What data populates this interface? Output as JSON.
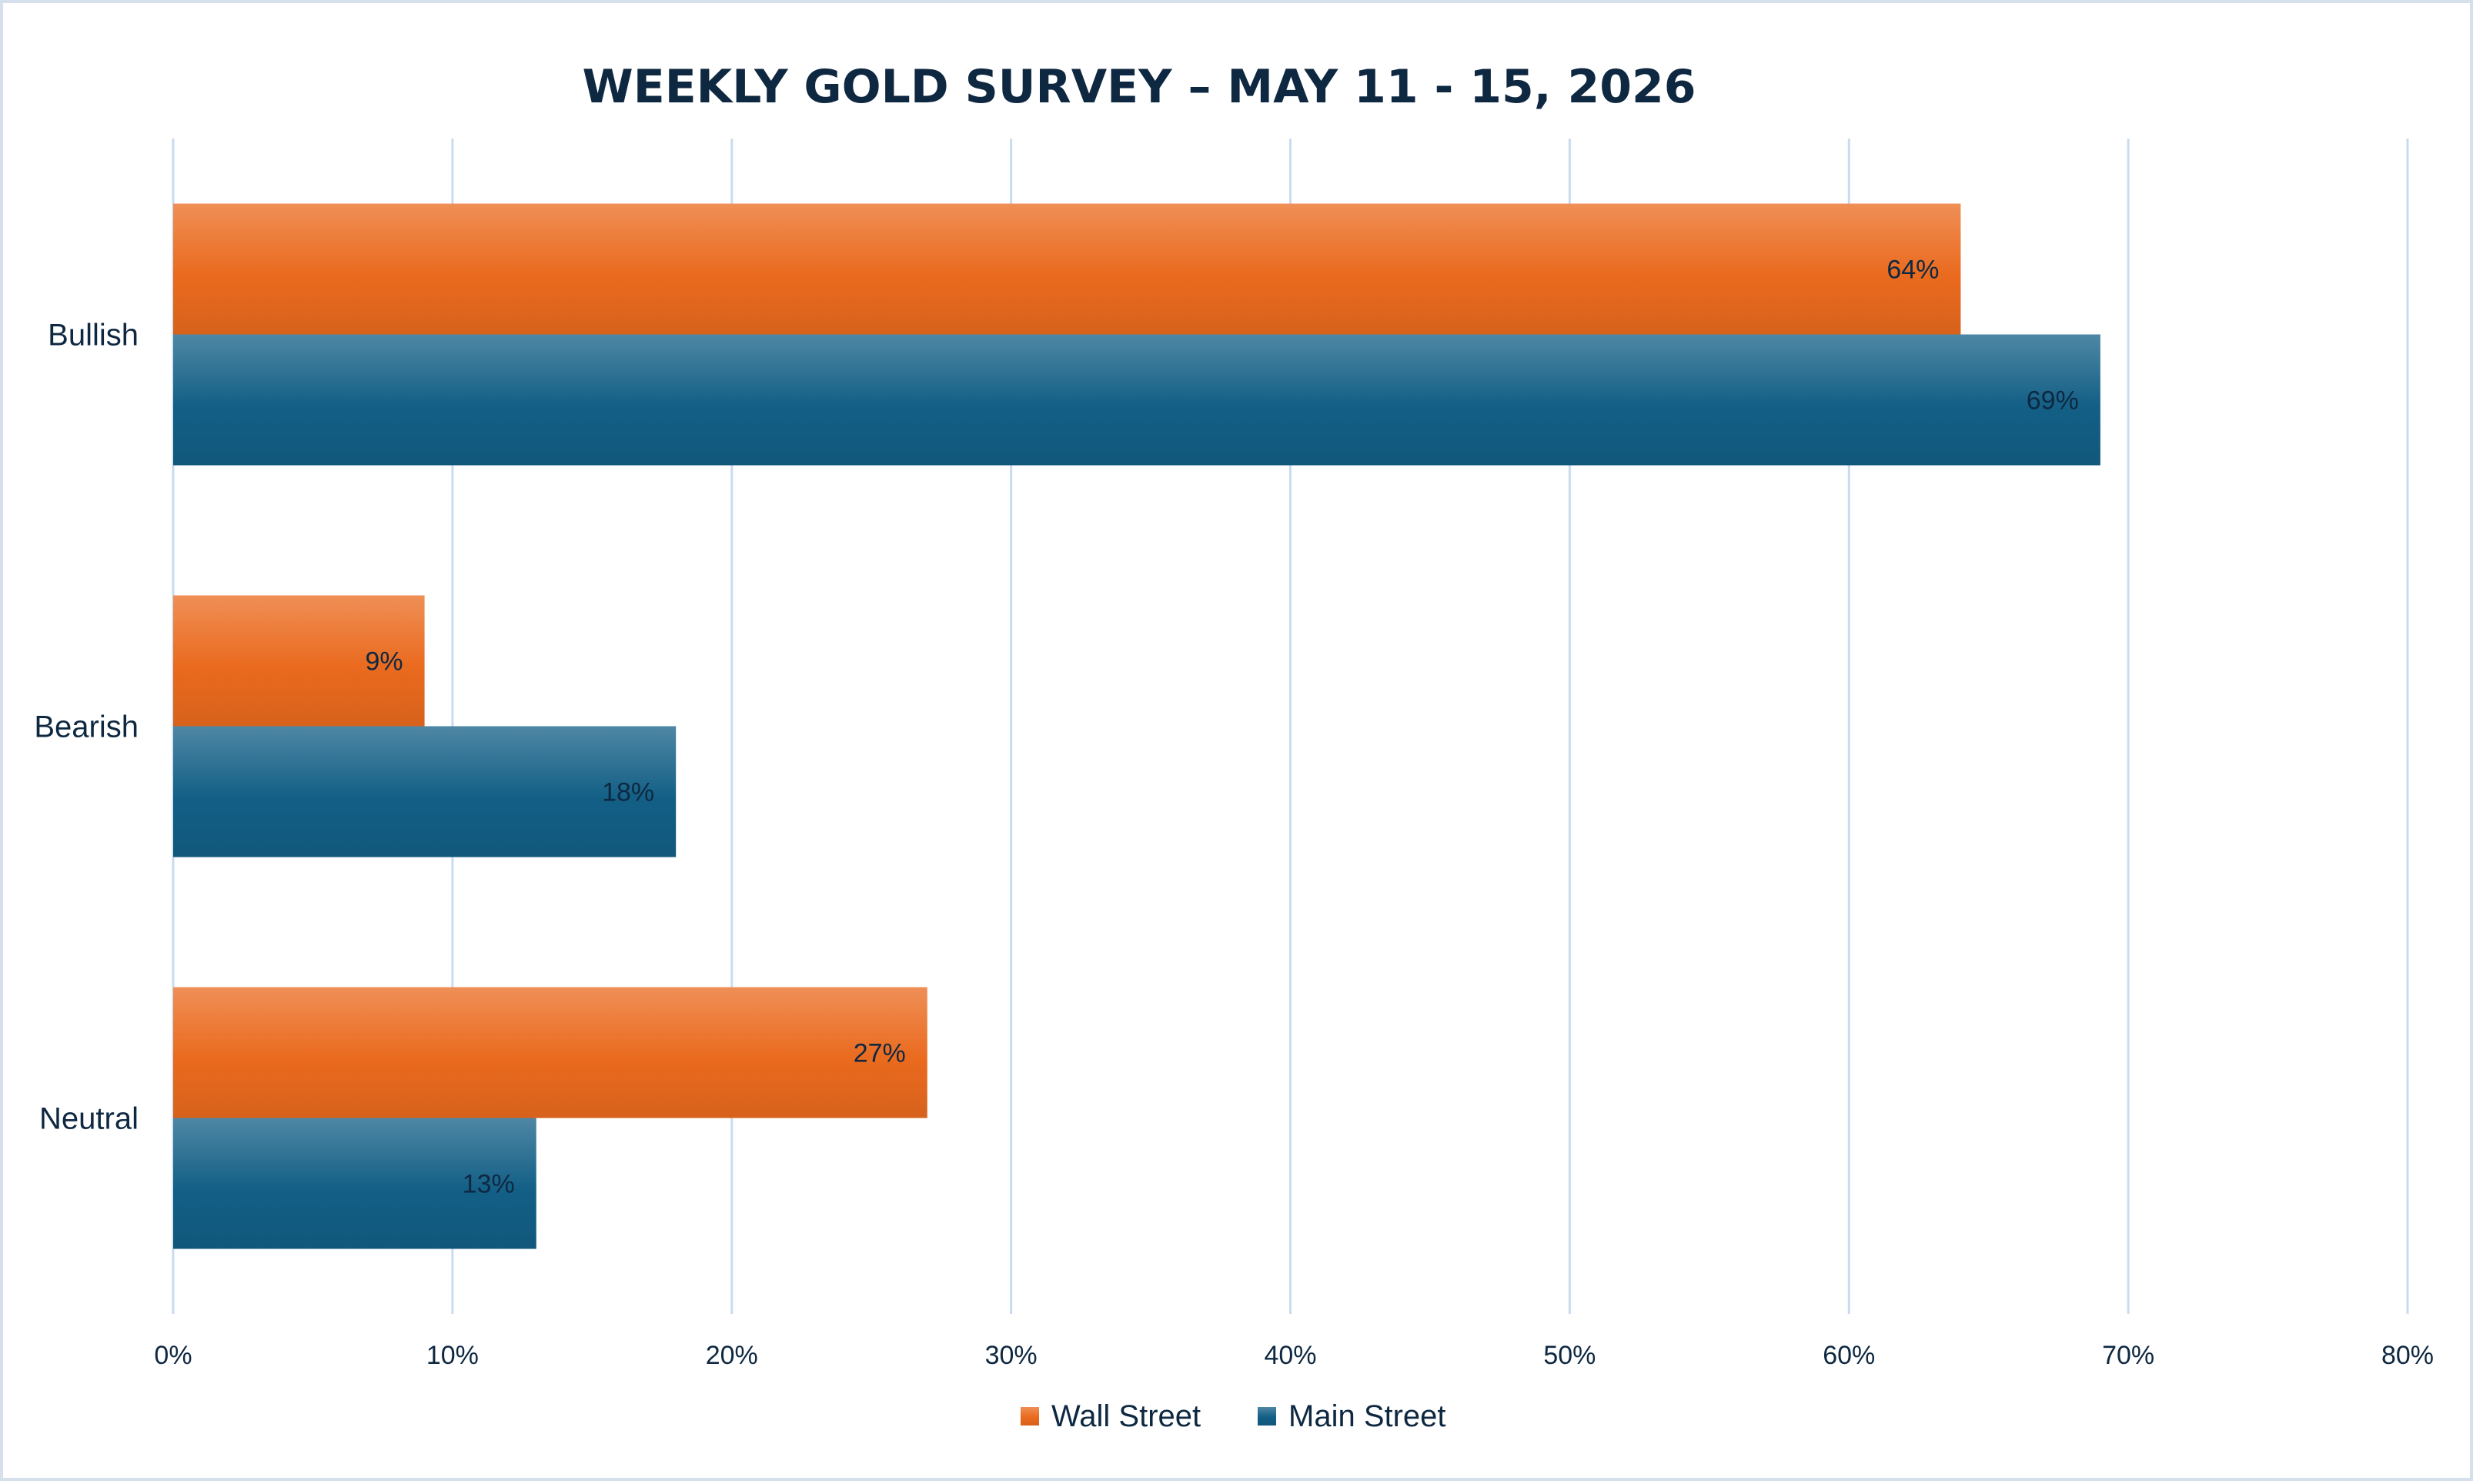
{
  "chart_data": {
    "type": "bar",
    "orientation": "horizontal",
    "title": "WEEKLY GOLD SURVEY – MAY 11 - 15, 2026",
    "categories": [
      "Bullish",
      "Bearish",
      "Neutral"
    ],
    "series": [
      {
        "name": "Wall Street",
        "values": [
          64,
          9,
          27
        ],
        "labels": [
          "64%",
          "9%",
          "27%"
        ],
        "color": "#ea6a1e"
      },
      {
        "name": "Main Street",
        "values": [
          69,
          18,
          13
        ],
        "labels": [
          "69%",
          "18%",
          "13%"
        ],
        "color": "#135f86"
      }
    ],
    "xlim": [
      0,
      80
    ],
    "xticks": [
      0,
      10,
      20,
      30,
      40,
      50,
      60,
      70,
      80
    ],
    "xtick_labels": [
      "0%",
      "10%",
      "20%",
      "30%",
      "40%",
      "50%",
      "60%",
      "70%",
      "80%"
    ],
    "grid": true,
    "legend_position": "bottom"
  }
}
